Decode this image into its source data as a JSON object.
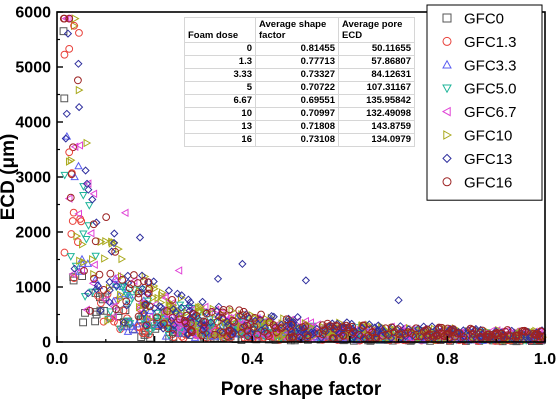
{
  "chart_data": {
    "type": "scatter",
    "title": "",
    "xlabel": "Pore shape factor",
    "ylabel": "ECD (μm)",
    "xlim": [
      0.0,
      1.0
    ],
    "ylim": [
      0,
      6000
    ],
    "x_ticks": [
      "0.0",
      "0.2",
      "0.4",
      "0.6",
      "0.8",
      "1.0"
    ],
    "y_ticks": [
      "0",
      "1000",
      "2000",
      "3000",
      "4000",
      "5000",
      "6000"
    ],
    "legend_position": "top-right",
    "series": [
      {
        "name": "GFC0",
        "marker": "square",
        "color": "#555555",
        "scale": 50
      },
      {
        "name": "GFC1.3",
        "marker": "circle",
        "color": "#e8413a",
        "scale": 60
      },
      {
        "name": "GFC3.3",
        "marker": "triangle-up",
        "color": "#5a5cf0",
        "scale": 80
      },
      {
        "name": "GFC5.0",
        "marker": "triangle-down",
        "color": "#1fb59a",
        "scale": 100
      },
      {
        "name": "GFC6.7",
        "marker": "triangle-left",
        "color": "#e043d6",
        "scale": 120
      },
      {
        "name": "GFC10",
        "marker": "triangle-right",
        "color": "#a8a81a",
        "scale": 125
      },
      {
        "name": "GFC13",
        "marker": "diamond",
        "color": "#2f2f9e",
        "scale": 135
      },
      {
        "name": "GFC16",
        "marker": "circle",
        "color": "#9c2323",
        "scale": 128
      }
    ],
    "highlight_points": [
      {
        "series": "GFC1.3",
        "x": 0.035,
        "y": 5750
      },
      {
        "series": "GFC1.3",
        "x": 0.045,
        "y": 5620
      },
      {
        "series": "GFC1.3",
        "x": 0.025,
        "y": 5330
      },
      {
        "series": "GFC0",
        "x": 0.015,
        "y": 4430
      },
      {
        "series": "GFC13",
        "x": 0.02,
        "y": 4150
      },
      {
        "series": "GFC13",
        "x": 0.018,
        "y": 3700
      },
      {
        "series": "GFC1.3",
        "x": 0.025,
        "y": 3450
      },
      {
        "series": "GFC16",
        "x": 0.03,
        "y": 3050
      },
      {
        "series": "GFC10",
        "x": 0.025,
        "y": 3280
      },
      {
        "series": "GFC6.7",
        "x": 0.14,
        "y": 2350
      },
      {
        "series": "GFC13",
        "x": 0.17,
        "y": 1900
      },
      {
        "series": "GFC13",
        "x": 0.38,
        "y": 1420
      },
      {
        "series": "GFC13",
        "x": 0.51,
        "y": 1120
      },
      {
        "series": "GFC13",
        "x": 0.33,
        "y": 1150
      },
      {
        "series": "GFC13",
        "x": 0.7,
        "y": 760
      },
      {
        "series": "GFC6.7",
        "x": 0.25,
        "y": 1300
      }
    ],
    "table": {
      "headers": [
        "Foam dose",
        "Average shape factor",
        "Average pore ECD"
      ],
      "rows": [
        [
          "0",
          "0.81455",
          "50.11655"
        ],
        [
          "1.3",
          "0.77713",
          "57.86807"
        ],
        [
          "3.33",
          "0.73327",
          "84.12631"
        ],
        [
          "5",
          "0.70722",
          "107.31167"
        ],
        [
          "6.67",
          "0.69551",
          "135.95842"
        ],
        [
          "10",
          "0.70997",
          "132.49098"
        ],
        [
          "13",
          "0.71808",
          "143.8759"
        ],
        [
          "16",
          "0.73108",
          "134.0979"
        ]
      ]
    }
  }
}
